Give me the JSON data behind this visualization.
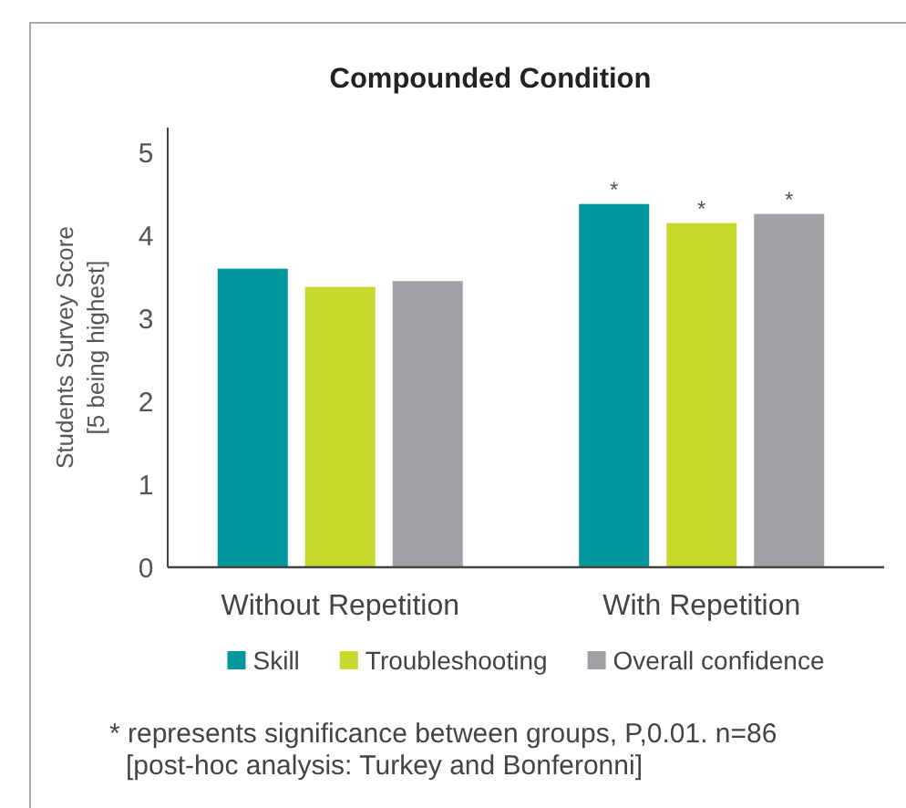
{
  "chart_data": {
    "type": "bar",
    "title": "Compounded Condition",
    "ylabel": "Students Survey Score\n[5 being highest]",
    "categories": [
      "Without Repetition",
      "With Repetition"
    ],
    "series": [
      {
        "name": "Skill",
        "color": "#00979d",
        "values": [
          3.6,
          4.38
        ],
        "value_labels": [
          null,
          "*"
        ]
      },
      {
        "name": "Troubleshooting",
        "color": "#c8d92e",
        "values": [
          3.38,
          4.15
        ],
        "value_labels": [
          null,
          "*"
        ]
      },
      {
        "name": "Overall confidence",
        "color": "#a0a1a5",
        "values": [
          3.45,
          4.26
        ],
        "value_labels": [
          null,
          "*"
        ]
      }
    ],
    "ylim": [
      0,
      5.3
    ],
    "yticks": [
      0,
      1,
      2,
      3,
      4,
      5
    ],
    "legend": "bottom",
    "annotations": [
      "* represents significance between groups, P,0.01. n=86",
      "[post-hoc analysis: Turkey and Bonferonni]"
    ]
  }
}
